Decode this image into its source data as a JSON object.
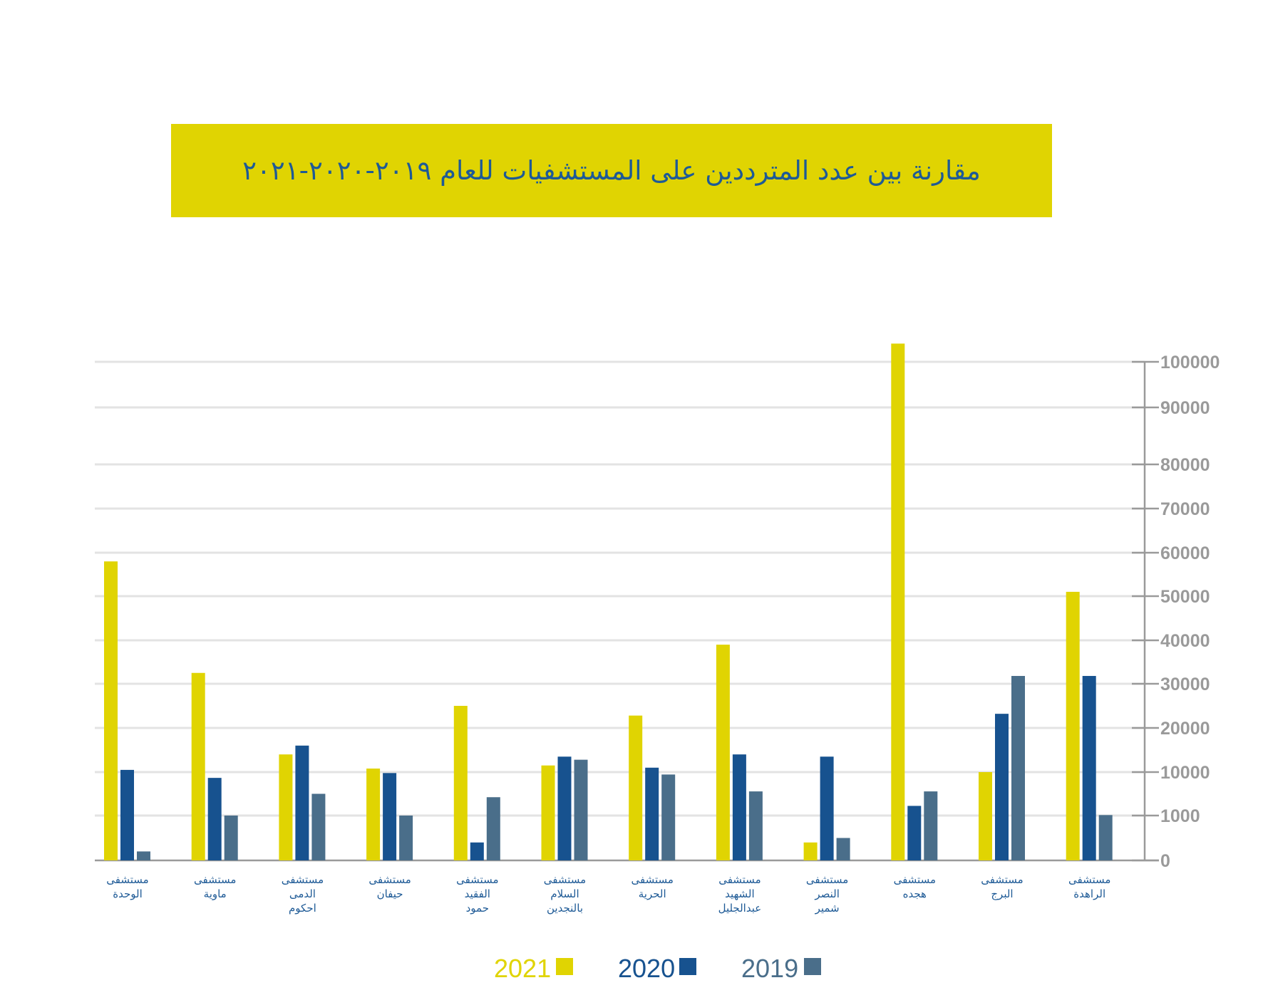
{
  "title": "مقارنة بين عدد المترددين على المستشفيات للعام ٢٠١٩-٢٠٢٠-٢٠٢١",
  "colors": {
    "s2021": "#e0d402",
    "s2020": "#17528f",
    "s2019": "#4a6e8a",
    "grid": "#e3e3e3",
    "axis": "#9a9a9a",
    "label": "#1e5a96",
    "title_bg": "#e0d402"
  },
  "chart_data": {
    "type": "bar",
    "grid": true,
    "legend_position": "bottom-center",
    "ytick_labels": [
      "0",
      "1000",
      "10000",
      "20000",
      "30000",
      "40000",
      "50000",
      "60000",
      "70000",
      "80000",
      "90000",
      "100000"
    ],
    "categories": [
      [
        "مستشفى",
        "الوحدة"
      ],
      [
        "مستشفى",
        "ماوية"
      ],
      [
        "مستشفى",
        "الدمى",
        "احكوم"
      ],
      [
        "مستشفى",
        "حيفان"
      ],
      [
        "مستشفى",
        "الفقيد",
        "حمود"
      ],
      [
        "مستشفى",
        "السلام",
        "بالنجدين"
      ],
      [
        "مستشفى",
        "الحرية"
      ],
      [
        "مستشفى",
        "الشهيد",
        "عبدالجليل"
      ],
      [
        "مستشفى",
        "النصر",
        "شمير"
      ],
      [
        "مستشفى",
        "هجده"
      ],
      [
        "مستشفى",
        "البرج"
      ],
      [
        "مستشفى",
        "الراهدة"
      ]
    ],
    "series": [
      {
        "name": "2021",
        "color": "#e0d402",
        "values": [
          58000,
          32500,
          14000,
          10800,
          25000,
          11500,
          22800,
          39000,
          400,
          104000,
          10000,
          51000
        ]
      },
      {
        "name": "2020",
        "color": "#17528f",
        "values": [
          10500,
          8800,
          16000,
          9800,
          400,
          13500,
          11000,
          14000,
          13500,
          3000,
          23200,
          31800
        ]
      },
      {
        "name": "2019",
        "color": "#4a6e8a",
        "values": [
          200,
          1000,
          5500,
          1000,
          4800,
          12800,
          9500,
          6000,
          500,
          6000,
          31800,
          1100
        ]
      }
    ]
  }
}
